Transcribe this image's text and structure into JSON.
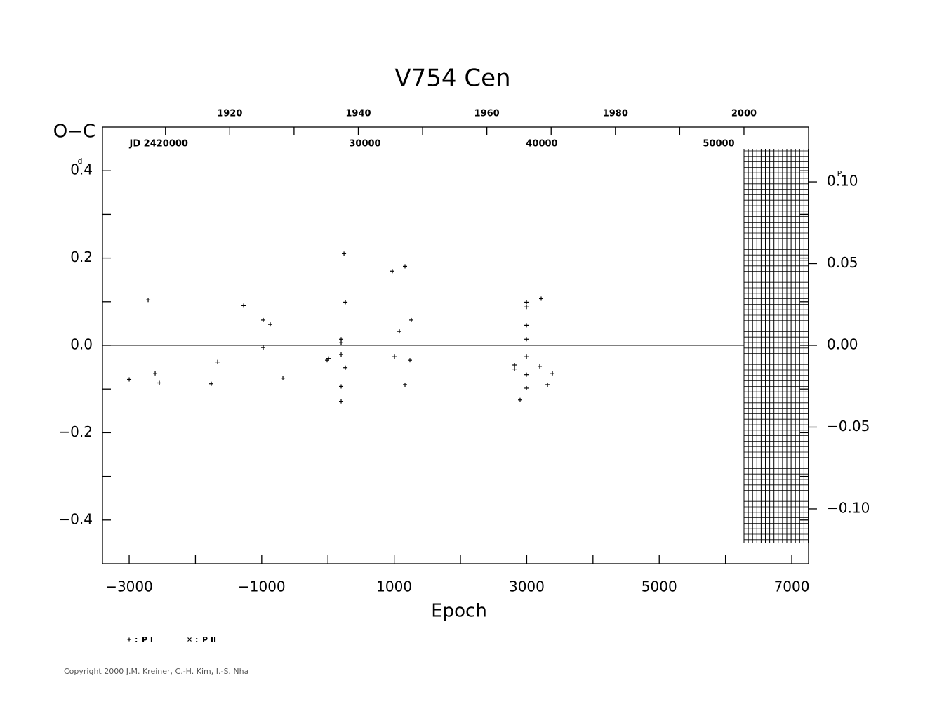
{
  "chart_data": {
    "type": "scatter",
    "title": "V754 Cen",
    "y_label": "O−C",
    "y_unit": "d",
    "y2_unit": "P",
    "x_label": "Epoch",
    "xlim": [
      -3403,
      7254
    ],
    "xticks": [
      {
        "value": -3000,
        "label": "−3000"
      },
      {
        "value": -1000,
        "label": "−1000"
      },
      1000,
      3000,
      5000,
      7000
    ],
    "xminor": [
      -2000,
      0,
      2000,
      4000,
      6000
    ],
    "ylim": [
      -0.5,
      0.5
    ],
    "yticks": [
      {
        "value": 0.4,
        "label": "0.4"
      },
      0.2,
      {
        "value": 0,
        "label": "0.0"
      },
      {
        "value": -0.2,
        "label": "−0.2"
      },
      {
        "value": -0.4,
        "label": "−0.4"
      }
    ],
    "yminor": [
      0.3,
      0.1,
      -0.1,
      -0.3
    ],
    "y2lim": [
      -0.1335,
      0.1335
    ],
    "y2ticks": [
      {
        "value": 0.1,
        "label": "0.10"
      },
      0.05,
      {
        "value": 0,
        "label": "0.00"
      },
      {
        "value": -0.05,
        "label": "−0.05"
      },
      {
        "value": -0.1,
        "label": "−0.10"
      }
    ],
    "year_lim": [
      1900.2,
      2010.05
    ],
    "year_ticks": [
      1920,
      1940,
      1960,
      1980,
      2000
    ],
    "year_minor": [
      1910,
      1930,
      1950,
      1970,
      1990
    ],
    "jd_lim": [
      15159,
      55079
    ],
    "jd_ticks": [
      {
        "value": 20000,
        "label": "JD  2420000"
      },
      {
        "value": 30000,
        "label": "30000"
      },
      {
        "value": 40000,
        "label": "40000"
      },
      {
        "value": 50000,
        "label": "50000"
      }
    ],
    "series": [
      {
        "name": "P I",
        "marker": "+",
        "x": [
          -3000,
          -2714,
          -2608,
          -2545,
          -1761,
          -1665,
          -1273,
          -977,
          -977,
          -871,
          -680,
          -13,
          8,
          199,
          199,
          199,
          199,
          199,
          242,
          263,
          263,
          972,
          1004,
          1078,
          1163,
          1163,
          1237,
          1258,
          2816,
          2816,
          2900,
          2996,
          2996,
          2996,
          2996,
          2996,
          2996,
          2996,
          3197,
          3218,
          3314,
          3388
        ],
        "values": [
          -0.078,
          0.104,
          -0.064,
          -0.086,
          -0.088,
          -0.038,
          0.091,
          0.058,
          -0.005,
          0.048,
          -0.075,
          -0.034,
          -0.03,
          0.014,
          0.006,
          -0.021,
          -0.094,
          -0.128,
          0.21,
          0.099,
          -0.051,
          0.17,
          -0.026,
          0.032,
          0.181,
          -0.09,
          -0.034,
          0.058,
          -0.045,
          -0.054,
          -0.125,
          0.099,
          0.088,
          0.046,
          0.014,
          -0.026,
          -0.067,
          -0.098,
          -0.048,
          0.107,
          -0.09,
          -0.064
        ]
      },
      {
        "name": "P II",
        "marker": "x",
        "x": [],
        "values": []
      }
    ]
  },
  "footer": "Copyright 2000 J.M. Kreiner, C.-H. Kim, I.-S. Nha"
}
